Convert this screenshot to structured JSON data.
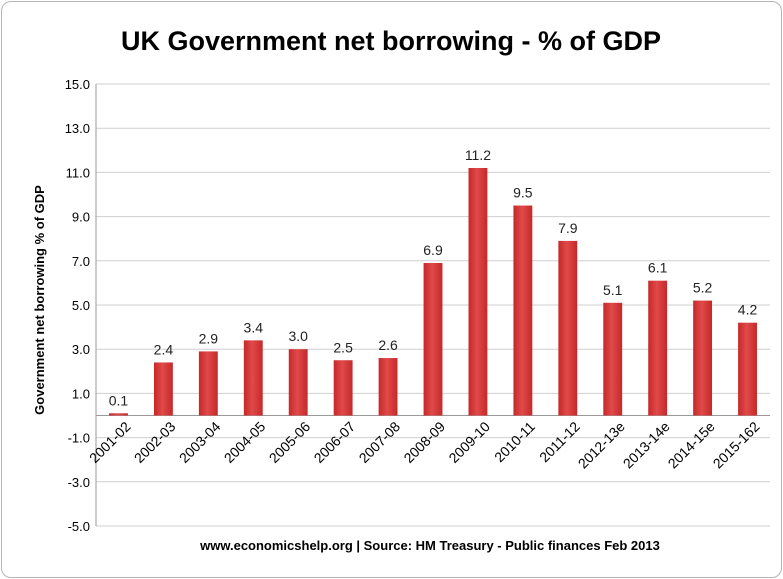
{
  "chart_data": {
    "type": "bar",
    "title": "UK Government net borrowing - % of GDP",
    "ylabel": "Government net borrowing % of GDP",
    "xlabel": "",
    "caption": "www.economicshelp.org | Source: HM Treasury - Public finances Feb 2013",
    "categories": [
      "2001-02",
      "2002-03",
      "2003-04",
      "2004-05",
      "2005-06",
      "2006-07",
      "2007-08",
      "2008-09",
      "2009-10",
      "2010-11",
      "2011-12",
      "2012-13e",
      "2013-14e",
      "2014-15e",
      "2015-162"
    ],
    "values": [
      0.1,
      2.4,
      2.9,
      3.4,
      3.0,
      2.5,
      2.6,
      6.9,
      11.2,
      9.5,
      7.9,
      5.1,
      6.1,
      5.2,
      4.2
    ],
    "value_labels": [
      "0.1",
      "2.4",
      "2.9",
      "3.4",
      "3.0",
      "2.5",
      "2.6",
      "6.9",
      "11.2",
      "9.5",
      "7.9",
      "5.1",
      "6.1",
      "5.2",
      "4.2"
    ],
    "yticks": [
      "-5.0",
      "-3.0",
      "-1.0",
      "1.0",
      "3.0",
      "5.0",
      "7.0",
      "9.0",
      "11.0",
      "13.0",
      "15.0"
    ],
    "ylim": [
      -5,
      15
    ],
    "grid": true,
    "legend": "none",
    "bar_color": "#c62828",
    "bar_color_light": "#e04a4a"
  }
}
